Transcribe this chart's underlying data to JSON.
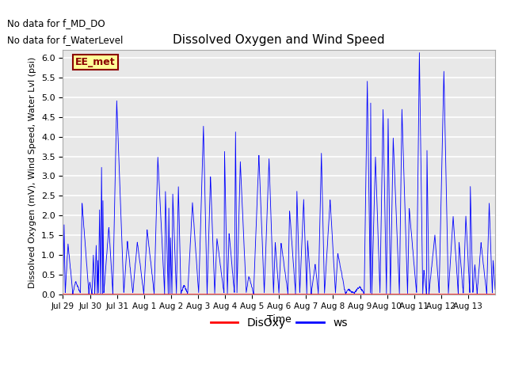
{
  "title": "Dissolved Oxygen and Wind Speed",
  "ylabel": "Dissolved Oxygen (mV), Wind Speed, Water Lvl (psi)",
  "xlabel": "Time",
  "ylim": [
    0.0,
    6.2
  ],
  "xtick_labels": [
    "Jul 29",
    "Jul 30",
    "Jul 31",
    "Aug 1",
    "Aug 2",
    "Aug 3",
    "Aug 4",
    "Aug 5",
    "Aug 6",
    "Aug 7",
    "Aug 8",
    "Aug 9",
    "Aug 10",
    "Aug 11",
    "Aug 12",
    "Aug 13"
  ],
  "legend_label": "EE_met",
  "legend_text_color": "#8b0000",
  "legend_box_color": "#ffff99",
  "legend_box_edge": "#8b0000",
  "line_ws_color": "blue",
  "line_do_color": "red",
  "no_data_text1": "No data for f_MD_DO",
  "no_data_text2": "No data for f_WaterLevel",
  "yticks": [
    0.0,
    0.5,
    1.0,
    1.5,
    2.0,
    2.5,
    3.0,
    3.5,
    4.0,
    4.5,
    5.0,
    5.5,
    6.0
  ],
  "axes_bg_color": "#e8e8e8",
  "fig_bg_color": "#ffffff"
}
